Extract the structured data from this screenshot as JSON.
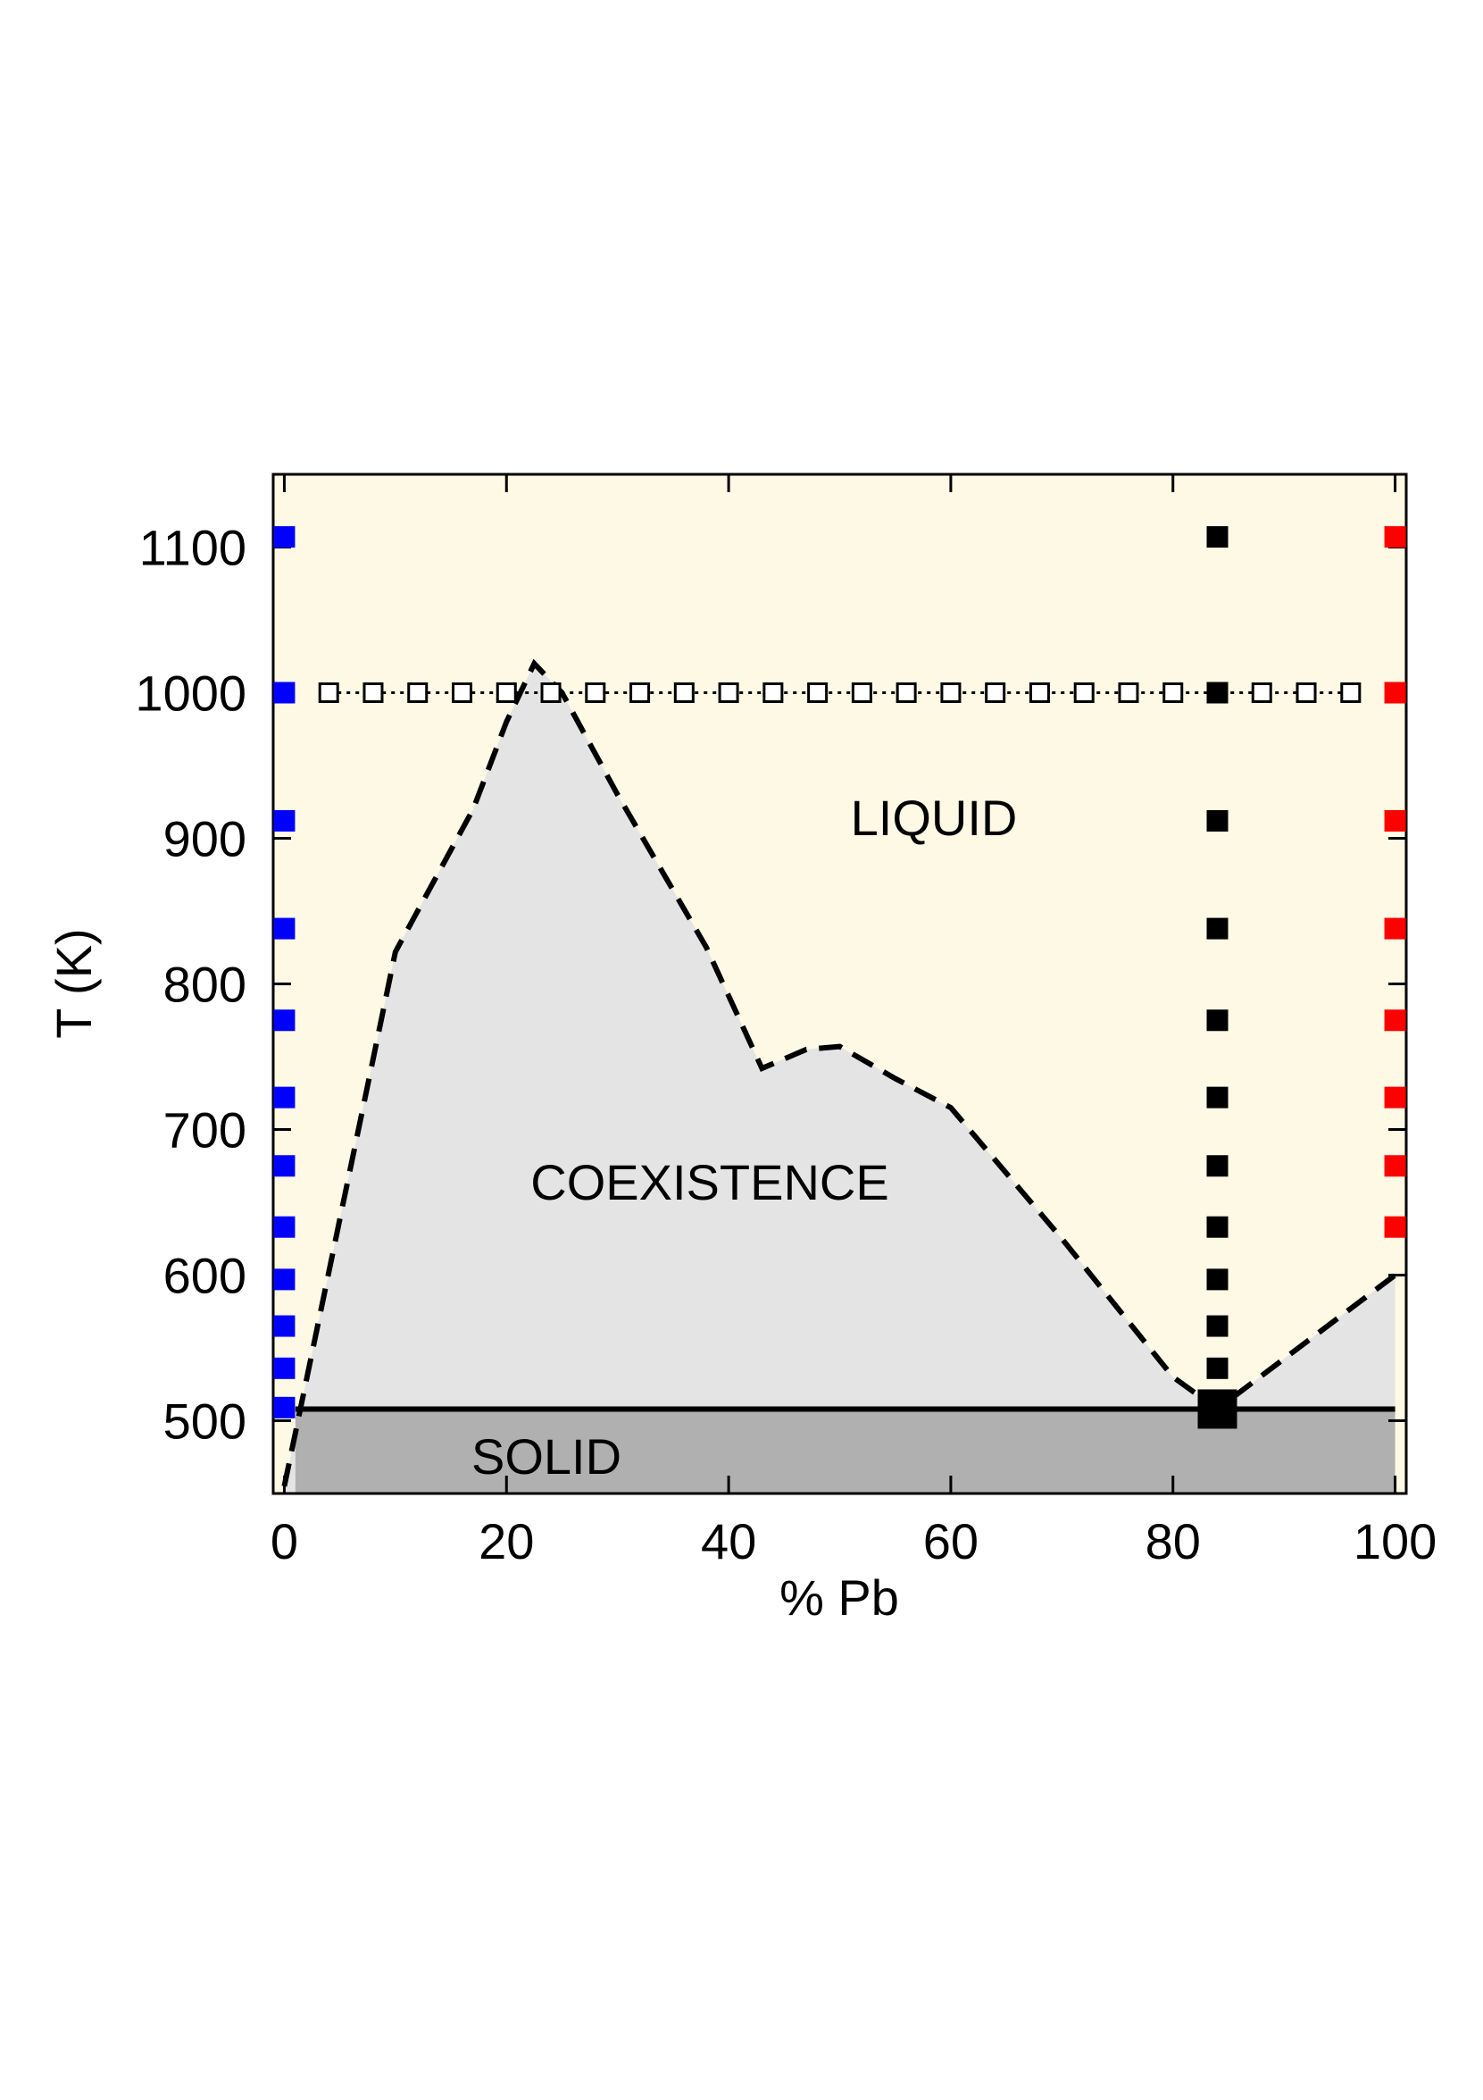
{
  "chart_data": {
    "type": "phase-diagram",
    "xlabel": "% Pb",
    "ylabel": "T (K)",
    "xlim": [
      -1,
      101
    ],
    "ylim": [
      450,
      1150
    ],
    "xticks": [
      0,
      20,
      40,
      60,
      80,
      100
    ],
    "yticks": [
      500,
      600,
      700,
      800,
      900,
      1000,
      1100
    ],
    "annotations": [
      "LIQUID",
      "COEXISTENCE",
      "SOLID"
    ],
    "region_colors": {
      "liquid": "#fdf9e4",
      "coexistence": "#e4e4e4",
      "solid": "#b0b0b0"
    },
    "boundary": {
      "color": "#000000",
      "style": "dashed",
      "x": [
        0,
        10,
        17,
        20,
        22.5,
        25,
        30,
        38,
        43,
        47,
        50,
        55,
        60,
        70,
        80,
        84,
        100
      ],
      "values": [
        455,
        822,
        920,
        980,
        1020,
        1000,
        930,
        825,
        742,
        755,
        757,
        735,
        715,
        625,
        530,
        508,
        600
      ]
    },
    "solidus": {
      "color": "#000000",
      "style": "solid",
      "x": [
        1,
        100
      ],
      "values": [
        508,
        508
      ]
    },
    "series": [
      {
        "color": "#0000ff",
        "marker": "filled",
        "x": [
          0,
          0,
          0,
          0,
          0,
          0,
          0,
          0,
          0,
          0,
          0,
          0
        ],
        "values": [
          1107,
          1000,
          912,
          838,
          775,
          722,
          675,
          633,
          597,
          565,
          536,
          509
        ]
      },
      {
        "color": "#ff0000",
        "marker": "filled",
        "x": [
          100,
          100,
          100,
          100,
          100,
          100,
          100,
          100
        ],
        "values": [
          1107,
          1000,
          912,
          838,
          775,
          722,
          675,
          633
        ]
      },
      {
        "color": "#000000",
        "marker": "filled",
        "x": [
          84,
          84,
          84,
          84,
          84,
          84,
          84,
          84,
          84,
          84,
          84
        ],
        "values": [
          1107,
          1000,
          912,
          838,
          775,
          722,
          675,
          633,
          597,
          565,
          536
        ]
      },
      {
        "color": "#000000",
        "marker": "open",
        "line": "dotted",
        "x": [
          4,
          8,
          12,
          16,
          20,
          24,
          28,
          32,
          36,
          40,
          44,
          48,
          52,
          56,
          60,
          64,
          68,
          72,
          76,
          80,
          88,
          92,
          96
        ],
        "values": [
          1000,
          1000,
          1000,
          1000,
          1000,
          1000,
          1000,
          1000,
          1000,
          1000,
          1000,
          1000,
          1000,
          1000,
          1000,
          1000,
          1000,
          1000,
          1000,
          1000,
          1000,
          1000,
          1000
        ]
      },
      {
        "color": "#000000",
        "marker": "large",
        "x": [
          84
        ],
        "values": [
          508
        ]
      }
    ]
  }
}
